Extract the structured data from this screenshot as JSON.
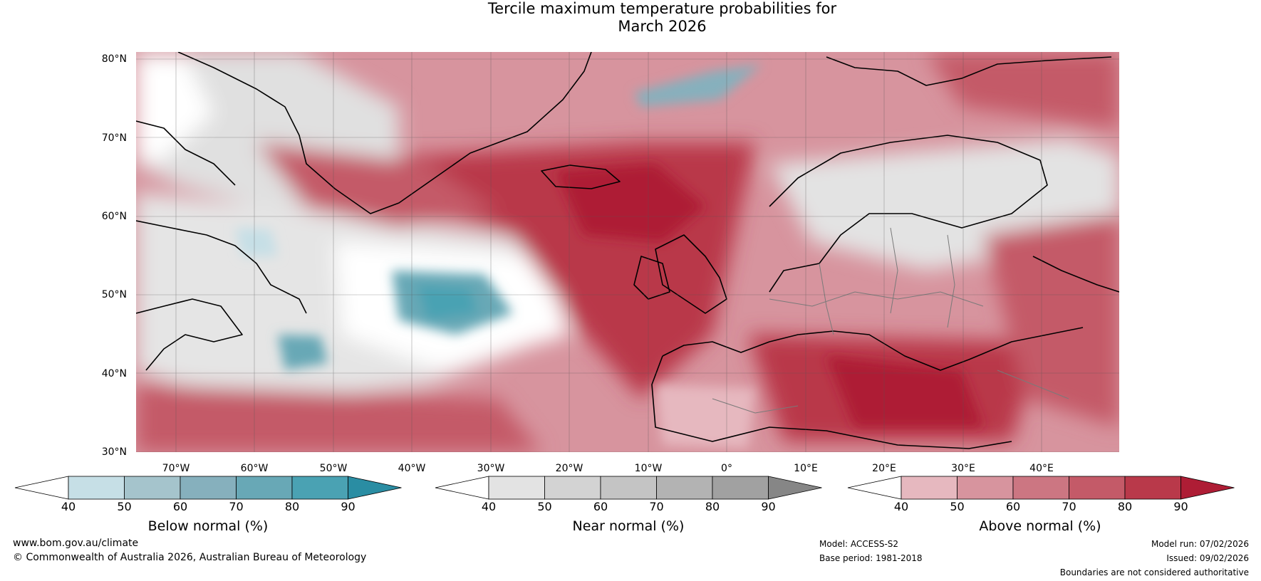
{
  "title": {
    "line1": "Tercile maximum temperature probabilities for",
    "line2": "March 2026"
  },
  "map": {
    "lat_labels": [
      "80°N",
      "70°N",
      "60°N",
      "50°N",
      "40°N",
      "30°N"
    ],
    "lon_labels": [
      "70°W",
      "60°W",
      "50°W",
      "40°W",
      "30°W",
      "20°W",
      "10°W",
      "0°",
      "10°E",
      "20°E",
      "30°E",
      "40°E"
    ],
    "lat_range": [
      30,
      80
    ],
    "lon_range": [
      -75,
      50
    ]
  },
  "legends": [
    {
      "title": "Below normal (%)",
      "ticks": [
        "40",
        "50",
        "60",
        "70",
        "80",
        "90"
      ],
      "colors": [
        "#ffffff",
        "#c6dfe6",
        "#a5c4cc",
        "#86b0bd",
        "#68a8b6",
        "#4aa2b3",
        "#2a8da3"
      ]
    },
    {
      "title": "Near normal (%)",
      "ticks": [
        "40",
        "50",
        "60",
        "70",
        "80",
        "90"
      ],
      "colors": [
        "#ffffff",
        "#e3e3e3",
        "#d3d3d3",
        "#c4c4c4",
        "#b3b3b3",
        "#a1a1a1",
        "#868686"
      ]
    },
    {
      "title": "Above normal (%)",
      "ticks": [
        "40",
        "50",
        "60",
        "70",
        "80",
        "90"
      ],
      "colors": [
        "#ffffff",
        "#e6b8bf",
        "#d7949e",
        "#cc7682",
        "#c45a68",
        "#b9394a",
        "#ae1d35"
      ]
    }
  ],
  "footer": {
    "website": "www.bom.gov.au/climate",
    "copyright": "© Commonwealth of Australia 2026, Australian Bureau of Meteorology",
    "model": "Model: ACCESS-S2",
    "base_period": "Base period: 1981-2018",
    "model_run": "Model run: 07/02/2026",
    "issued": "Issued: 09/02/2026",
    "disclaimer": "Boundaries are not considered authoritative"
  }
}
